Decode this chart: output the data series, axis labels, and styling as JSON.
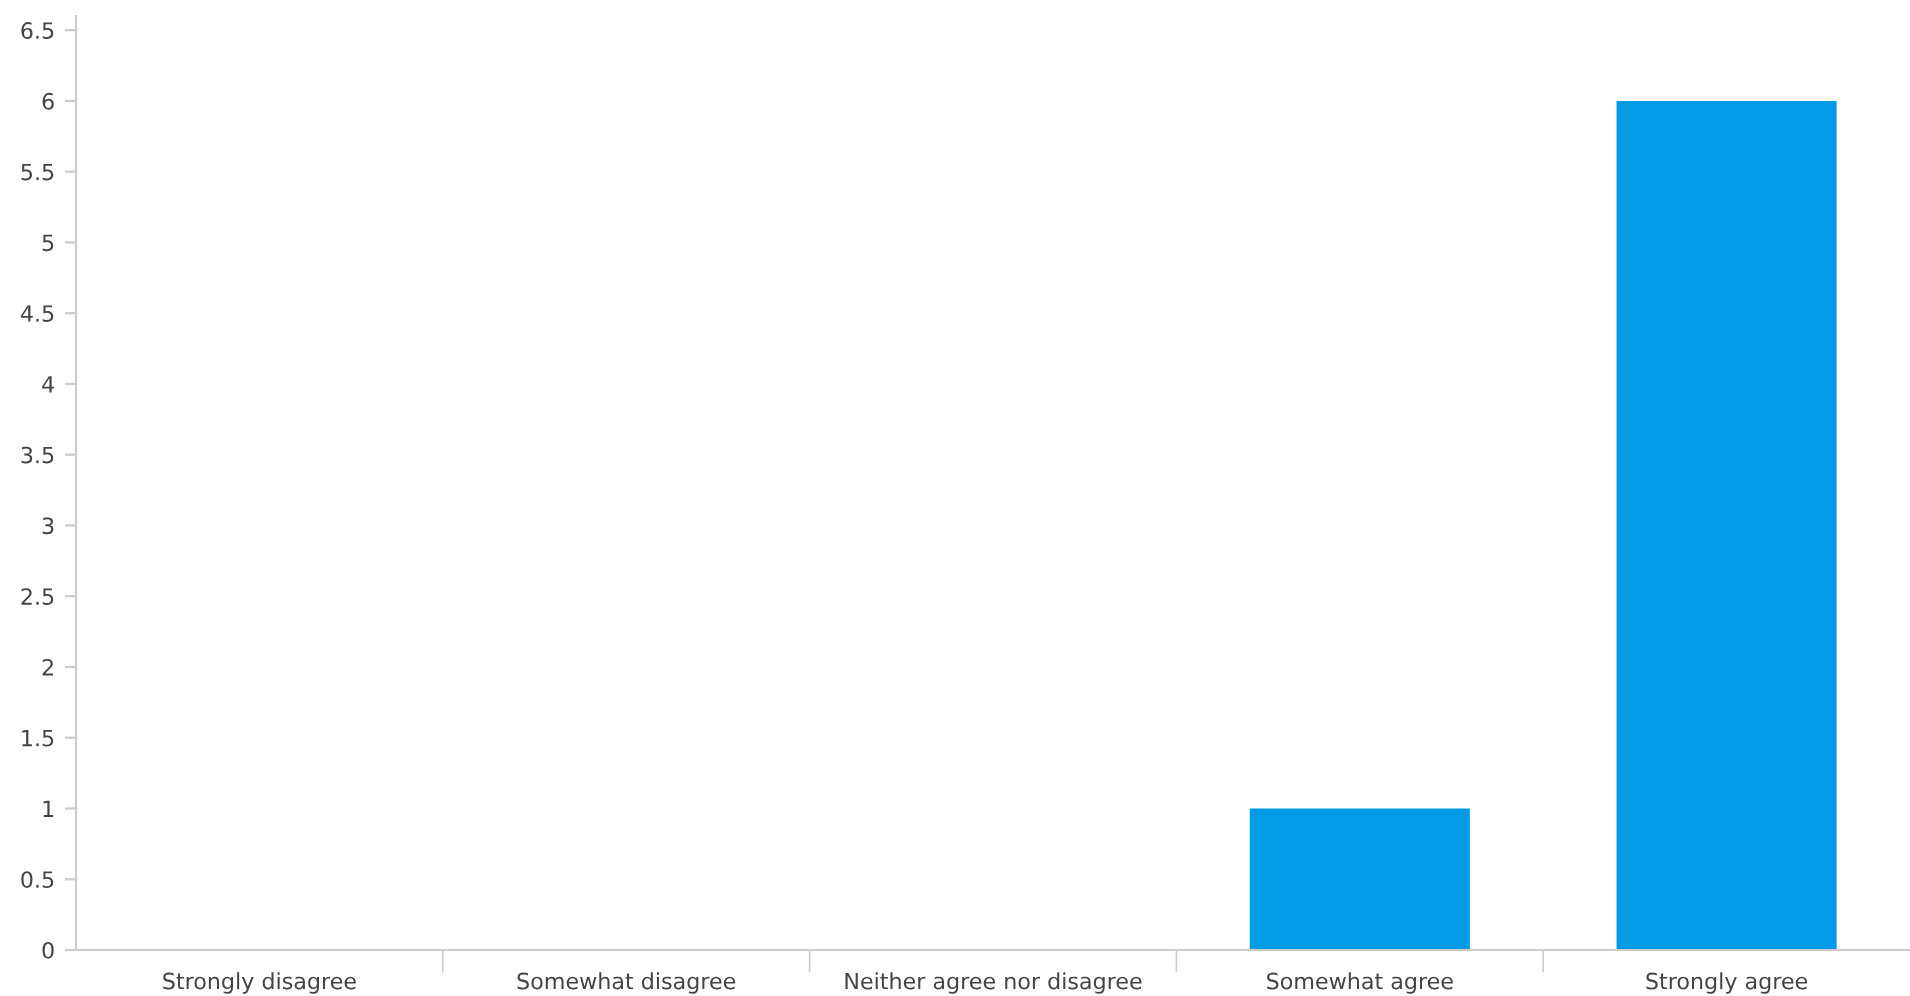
{
  "chart_data": {
    "type": "bar",
    "categories": [
      "Strongly disagree",
      "Somewhat disagree",
      "Neither agree nor disagree",
      "Somewhat agree",
      "Strongly agree"
    ],
    "values": [
      0,
      0,
      0,
      1,
      6
    ],
    "color": "#039be5",
    "ylim": [
      0,
      6.6
    ],
    "yticks": [
      0,
      0.5,
      1,
      1.5,
      2,
      2.5,
      3,
      3.5,
      4,
      4.5,
      5,
      5.5,
      6,
      6.5
    ],
    "grid": false,
    "legend": false
  }
}
